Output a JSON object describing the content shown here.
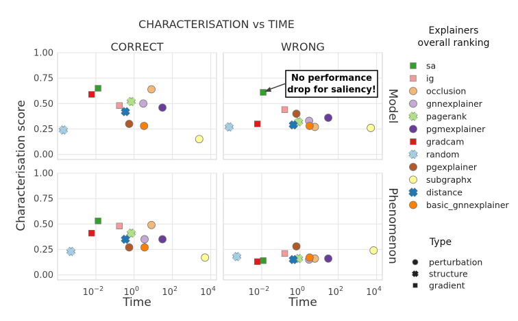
{
  "chart_data": {
    "type": "scatter",
    "title": "CHARACTERISATION vs TIME",
    "xlabel": "Time",
    "ylabel": "Characterisation score",
    "x_scale": "log",
    "xlim": [
      0.0001,
      20000
    ],
    "ylim": [
      -0.05,
      1.0
    ],
    "y_ticks": [
      "0.00",
      "0.25",
      "0.50",
      "0.75",
      "1.00"
    ],
    "x_ticks": [
      {
        "exp": -2,
        "label": "10"
      },
      {
        "exp": 0,
        "label": "10"
      },
      {
        "exp": 2,
        "label": "10"
      },
      {
        "exp": 4,
        "label": "10"
      }
    ],
    "x_tick_exponents": [
      "−2",
      "0",
      "2",
      "4"
    ],
    "col_labels": [
      "CORRECT",
      "WRONG"
    ],
    "row_labels": [
      "Model",
      "Phenomenon"
    ],
    "grid": true,
    "annotation": {
      "lines": [
        "No performance",
        "drop for saliency!"
      ],
      "panel": "model-wrong",
      "points_to": "sa"
    },
    "legend": {
      "title_lines": [
        "Explainers",
        "overall ranking"
      ],
      "entries": [
        {
          "name": "sa",
          "color": "#33a02c",
          "marker": "square"
        },
        {
          "name": "ig",
          "color": "#f29b9b",
          "marker": "square"
        },
        {
          "name": "occlusion",
          "color": "#f3b877",
          "marker": "circle"
        },
        {
          "name": "gnnexplainer",
          "color": "#c7a9d6",
          "marker": "circle"
        },
        {
          "name": "pagerank",
          "color": "#b2df8a",
          "marker": "cross"
        },
        {
          "name": "pgmexplainer",
          "color": "#6a3d9a",
          "marker": "circle"
        },
        {
          "name": "gradcam",
          "color": "#e31a1c",
          "marker": "square"
        },
        {
          "name": "random",
          "color": "#a6cee3",
          "marker": "cross"
        },
        {
          "name": "pgexplainer",
          "color": "#b15928",
          "marker": "circle"
        },
        {
          "name": "subgraphx",
          "color": "#ffff99",
          "marker": "circle"
        },
        {
          "name": "distance",
          "color": "#1f78b4",
          "marker": "cross"
        },
        {
          "name": "basic_gnnexplainer",
          "color": "#ff7f00",
          "marker": "circle"
        }
      ],
      "type_title": "Type",
      "types": [
        {
          "name": "perturbation",
          "marker": "circle"
        },
        {
          "name": "structure",
          "marker": "cross"
        },
        {
          "name": "gradient",
          "marker": "square"
        }
      ]
    },
    "panels": [
      {
        "id": "model-correct",
        "points": [
          {
            "name": "sa",
            "x": 0.013,
            "y": 0.65
          },
          {
            "name": "ig",
            "x": 0.17,
            "y": 0.48
          },
          {
            "name": "occlusion",
            "x": 8,
            "y": 0.64
          },
          {
            "name": "gnnexplainer",
            "x": 3,
            "y": 0.5
          },
          {
            "name": "pagerank",
            "x": 0.7,
            "y": 0.52
          },
          {
            "name": "pgmexplainer",
            "x": 30,
            "y": 0.46
          },
          {
            "name": "gradcam",
            "x": 0.006,
            "y": 0.59
          },
          {
            "name": "random",
            "x": 0.0002,
            "y": 0.24
          },
          {
            "name": "pgexplainer",
            "x": 0.55,
            "y": 0.3
          },
          {
            "name": "subgraphx",
            "x": 2500,
            "y": 0.15
          },
          {
            "name": "distance",
            "x": 0.35,
            "y": 0.42
          },
          {
            "name": "basic_gnnexplainer",
            "x": 3.3,
            "y": 0.28
          }
        ]
      },
      {
        "id": "model-wrong",
        "points": [
          {
            "name": "sa",
            "x": 0.012,
            "y": 0.61
          },
          {
            "name": "ig",
            "x": 0.16,
            "y": 0.44
          },
          {
            "name": "occlusion",
            "x": 6,
            "y": 0.27
          },
          {
            "name": "gnnexplainer",
            "x": 3,
            "y": 0.33
          },
          {
            "name": "pagerank",
            "x": 0.85,
            "y": 0.32
          },
          {
            "name": "pgmexplainer",
            "x": 30,
            "y": 0.36
          },
          {
            "name": "gradcam",
            "x": 0.006,
            "y": 0.3
          },
          {
            "name": "random",
            "x": 0.0002,
            "y": 0.27
          },
          {
            "name": "pgexplainer",
            "x": 0.65,
            "y": 0.4
          },
          {
            "name": "subgraphx",
            "x": 5000,
            "y": 0.26
          },
          {
            "name": "distance",
            "x": 0.45,
            "y": 0.29
          },
          {
            "name": "basic_gnnexplainer",
            "x": 3.2,
            "y": 0.28
          }
        ]
      },
      {
        "id": "phenomenon-correct",
        "points": [
          {
            "name": "sa",
            "x": 0.013,
            "y": 0.53
          },
          {
            "name": "ig",
            "x": 0.17,
            "y": 0.48
          },
          {
            "name": "occlusion",
            "x": 8,
            "y": 0.49
          },
          {
            "name": "gnnexplainer",
            "x": 3.5,
            "y": 0.35
          },
          {
            "name": "pagerank",
            "x": 0.7,
            "y": 0.41
          },
          {
            "name": "pgmexplainer",
            "x": 30,
            "y": 0.35
          },
          {
            "name": "gradcam",
            "x": 0.006,
            "y": 0.41
          },
          {
            "name": "random",
            "x": 0.0005,
            "y": 0.23
          },
          {
            "name": "pgexplainer",
            "x": 0.55,
            "y": 0.27
          },
          {
            "name": "subgraphx",
            "x": 5000,
            "y": 0.17
          },
          {
            "name": "distance",
            "x": 0.35,
            "y": 0.35
          },
          {
            "name": "basic_gnnexplainer",
            "x": 3.5,
            "y": 0.27
          }
        ]
      },
      {
        "id": "phenomenon-wrong",
        "points": [
          {
            "name": "sa",
            "x": 0.012,
            "y": 0.14
          },
          {
            "name": "ig",
            "x": 0.16,
            "y": 0.21
          },
          {
            "name": "occlusion",
            "x": 6,
            "y": 0.16
          },
          {
            "name": "gnnexplainer",
            "x": 3,
            "y": 0.15
          },
          {
            "name": "pagerank",
            "x": 0.85,
            "y": 0.16
          },
          {
            "name": "pgmexplainer",
            "x": 30,
            "y": 0.16
          },
          {
            "name": "gradcam",
            "x": 0.006,
            "y": 0.13
          },
          {
            "name": "random",
            "x": 0.0005,
            "y": 0.18
          },
          {
            "name": "pgexplainer",
            "x": 0.65,
            "y": 0.28
          },
          {
            "name": "subgraphx",
            "x": 7000,
            "y": 0.24
          },
          {
            "name": "distance",
            "x": 0.45,
            "y": 0.15
          },
          {
            "name": "basic_gnnexplainer",
            "x": 3.2,
            "y": 0.17
          }
        ]
      }
    ]
  }
}
